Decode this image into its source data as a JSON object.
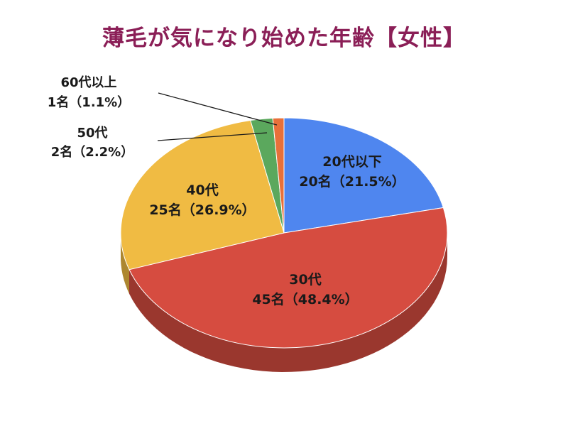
{
  "colors": {
    "title": "#8b1f57",
    "under_20": "#4f86ef",
    "age_30s": "#d64c40",
    "age_40s": "#f0bb43",
    "age_50s": "#5ba85d",
    "over_60": "#e8703a"
  },
  "chart_data": {
    "type": "pie",
    "title": "薄毛が気になり始めた年齢【女性】",
    "slices": [
      {
        "label": "20代以下",
        "count_label": "20名（21.5%）",
        "count": 20,
        "percent": 21.5,
        "color_key": "under_20",
        "label_position": "inside"
      },
      {
        "label": "30代",
        "count_label": "45名（48.4%）",
        "count": 45,
        "percent": 48.4,
        "color_key": "age_30s",
        "label_position": "inside"
      },
      {
        "label": "40代",
        "count_label": "25名（26.9%）",
        "count": 25,
        "percent": 26.9,
        "color_key": "age_40s",
        "label_position": "inside"
      },
      {
        "label": "50代",
        "count_label": "2名（2.2%）",
        "count": 2,
        "percent": 2.2,
        "color_key": "age_50s",
        "label_position": "outside"
      },
      {
        "label": "60代以上",
        "count_label": "1名（1.1%）",
        "count": 1,
        "percent": 1.1,
        "color_key": "over_60",
        "label_position": "outside"
      }
    ],
    "style": "3d-tilted",
    "start_angle": "12 o'clock",
    "direction": "clockwise"
  }
}
